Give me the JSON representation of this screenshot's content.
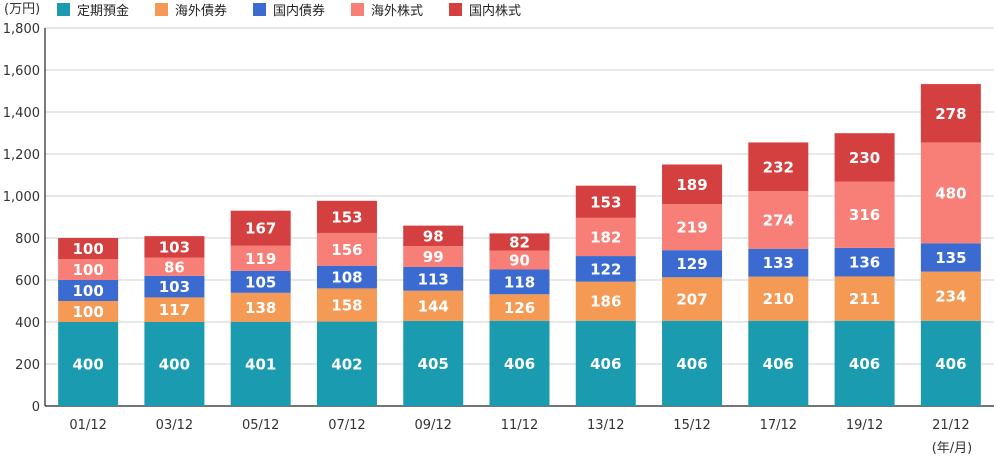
{
  "chart_data": {
    "type": "bar",
    "stacked": true,
    "y_unit_label": "(万円)",
    "x_unit_label": "(年/月)",
    "categories": [
      "01/12",
      "03/12",
      "05/12",
      "07/12",
      "09/12",
      "11/12",
      "13/12",
      "15/12",
      "17/12",
      "19/12",
      "21/12"
    ],
    "ylim": [
      0,
      1800
    ],
    "yticks": [
      0,
      200,
      400,
      600,
      800,
      1000,
      1200,
      1400,
      1600,
      1800
    ],
    "ytick_labels": [
      "0",
      "200",
      "400",
      "600",
      "800",
      "1,000",
      "1,200",
      "1,400",
      "1,600",
      "1,800"
    ],
    "grid": true,
    "legend_position": "top-left",
    "series": [
      {
        "name": "定期預金",
        "color": "#1a9bb0",
        "values": [
          400,
          400,
          401,
          402,
          405,
          406,
          406,
          406,
          406,
          406,
          406
        ]
      },
      {
        "name": "海外債券",
        "color": "#f59a55",
        "values": [
          100,
          117,
          138,
          158,
          144,
          126,
          186,
          207,
          210,
          211,
          234
        ]
      },
      {
        "name": "国内債券",
        "color": "#3b6bd0",
        "values": [
          100,
          103,
          105,
          108,
          113,
          118,
          122,
          129,
          133,
          136,
          135
        ]
      },
      {
        "name": "海外株式",
        "color": "#f77f77",
        "values": [
          100,
          86,
          119,
          156,
          99,
          90,
          182,
          219,
          274,
          316,
          480
        ]
      },
      {
        "name": "国内株式",
        "color": "#d43f3f",
        "values": [
          100,
          103,
          167,
          153,
          98,
          82,
          153,
          189,
          232,
          230,
          278
        ]
      }
    ]
  }
}
